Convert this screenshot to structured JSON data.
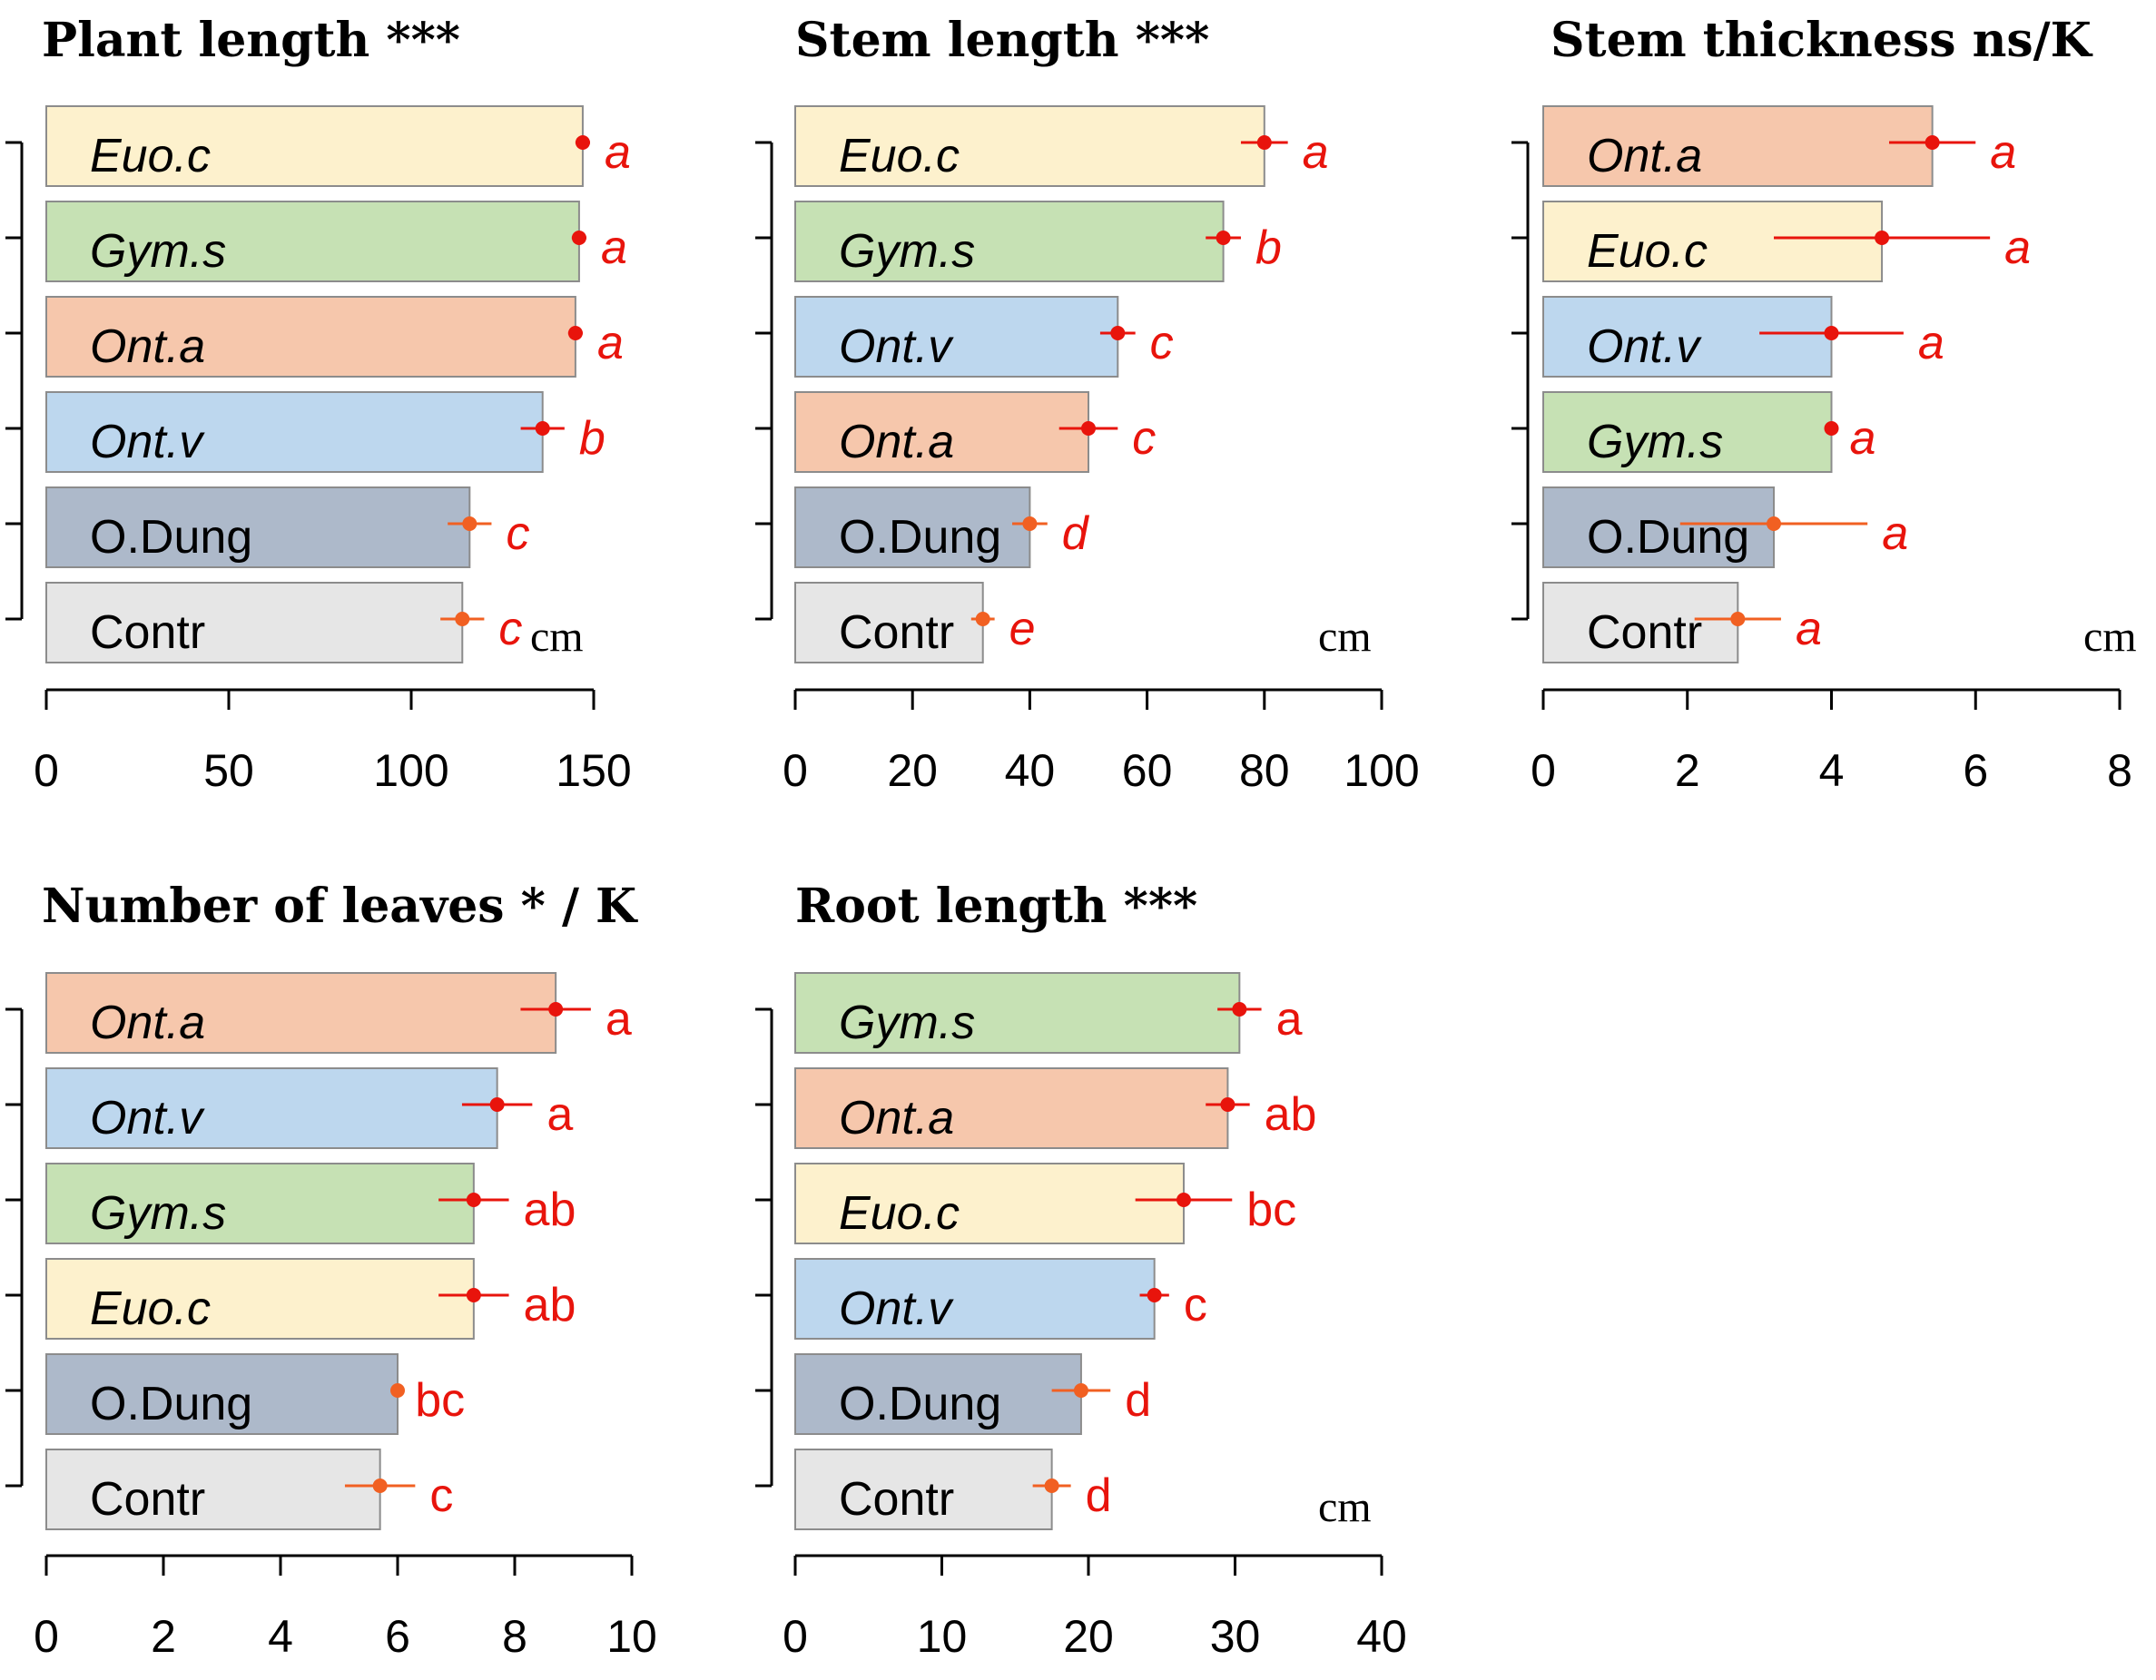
{
  "chart_data": [
    {
      "type": "bar",
      "orientation": "horizontal",
      "title": "Plant length",
      "significance": "***",
      "unit": "cm",
      "xlim": [
        0,
        150
      ],
      "ticks": [
        0,
        50,
        100,
        150
      ],
      "tick_labels": [
        "0",
        "50",
        "100",
        "150"
      ],
      "categories": [
        "Euo.c",
        "Gym.s",
        "Ont.a",
        "Ont.v",
        "O.Dung",
        "Contr"
      ],
      "values": [
        147,
        146,
        145,
        136,
        116,
        114
      ],
      "errors": [
        2,
        2,
        2,
        6,
        6,
        6
      ],
      "letters": [
        "a",
        "a",
        "a",
        "b",
        "c",
        "c"
      ],
      "italic": [
        true,
        true,
        true,
        true,
        false,
        false
      ],
      "letter_italic": true
    },
    {
      "type": "bar",
      "orientation": "horizontal",
      "title": "Stem length",
      "significance": "***",
      "unit": "cm",
      "xlim": [
        0,
        100
      ],
      "ticks": [
        0,
        20,
        40,
        60,
        80,
        100
      ],
      "tick_labels": [
        "0",
        "20",
        "40",
        "60",
        "80",
        "100"
      ],
      "categories": [
        "Euo.c",
        "Gym.s",
        "Ont.v",
        "Ont.a",
        "O.Dung",
        "Contr"
      ],
      "values": [
        80,
        73,
        55,
        50,
        40,
        32
      ],
      "errors": [
        4,
        3,
        3,
        5,
        3,
        2
      ],
      "letters": [
        "a",
        "b",
        "c",
        "c",
        "d",
        "e"
      ],
      "italic": [
        true,
        true,
        true,
        true,
        false,
        false
      ],
      "letter_italic": true
    },
    {
      "type": "bar",
      "orientation": "horizontal",
      "title": "Stem thickness",
      "significance": "ns/K",
      "unit": "cm",
      "xlim": [
        0,
        8
      ],
      "ticks": [
        0,
        2,
        4,
        6,
        8
      ],
      "tick_labels": [
        "0",
        "2",
        "4",
        "6",
        "8"
      ],
      "categories": [
        "Ont.a",
        "Euo.c",
        "Ont.v",
        "Gym.s",
        "O.Dung",
        "Contr"
      ],
      "values": [
        5.4,
        4.7,
        4.0,
        4.0,
        3.2,
        2.7
      ],
      "errors": [
        0.6,
        1.5,
        1.0,
        0.05,
        1.3,
        0.6
      ],
      "letters": [
        "a",
        "a",
        "a",
        "a",
        "a",
        "a"
      ],
      "italic": [
        true,
        true,
        true,
        true,
        false,
        false
      ],
      "letter_italic": true
    },
    {
      "type": "bar",
      "orientation": "horizontal",
      "title": "Number of leaves",
      "significance": "* / K",
      "unit": "",
      "xlim": [
        0,
        10
      ],
      "ticks": [
        0,
        2,
        4,
        6,
        8,
        10
      ],
      "tick_labels": [
        "0",
        "2",
        "4",
        "6",
        "8",
        "10"
      ],
      "categories": [
        "Ont.a",
        "Ont.v",
        "Gym.s",
        "Euo.c",
        "O.Dung",
        "Contr"
      ],
      "values": [
        8.7,
        7.7,
        7.3,
        7.3,
        6.0,
        5.7
      ],
      "errors": [
        0.6,
        0.6,
        0.6,
        0.6,
        0.05,
        0.6
      ],
      "letters": [
        "a",
        "a",
        "ab",
        "ab",
        "bc",
        "c"
      ],
      "italic": [
        true,
        true,
        true,
        true,
        false,
        false
      ],
      "letter_italic": false
    },
    {
      "type": "bar",
      "orientation": "horizontal",
      "title": "Root length",
      "significance": "***",
      "unit": "cm",
      "xlim": [
        0,
        40
      ],
      "ticks": [
        0,
        10,
        20,
        30,
        40
      ],
      "tick_labels": [
        "0",
        "10",
        "20",
        "30",
        "40"
      ],
      "categories": [
        "Gym.s",
        "Ont.a",
        "Euo.c",
        "Ont.v",
        "O.Dung",
        "Contr"
      ],
      "values": [
        30.3,
        29.5,
        26.5,
        24.5,
        19.5,
        17.5
      ],
      "errors": [
        1.5,
        1.5,
        3.3,
        1.0,
        2.0,
        1.3
      ],
      "letters": [
        "a",
        "ab",
        "bc",
        "c",
        "d",
        "d"
      ],
      "italic": [
        true,
        true,
        true,
        true,
        false,
        false
      ],
      "letter_italic": false
    }
  ],
  "colors": {
    "Euo.c": "#fdf1cd",
    "Gym.s": "#c6e1b4",
    "Ont.a": "#f6c7ac",
    "Ont.v": "#bdd7ee",
    "O.Dung": "#adb9ca",
    "Contr": "#e6e6e6",
    "marker": "#e8140c",
    "marker_alt": "#f16022"
  }
}
